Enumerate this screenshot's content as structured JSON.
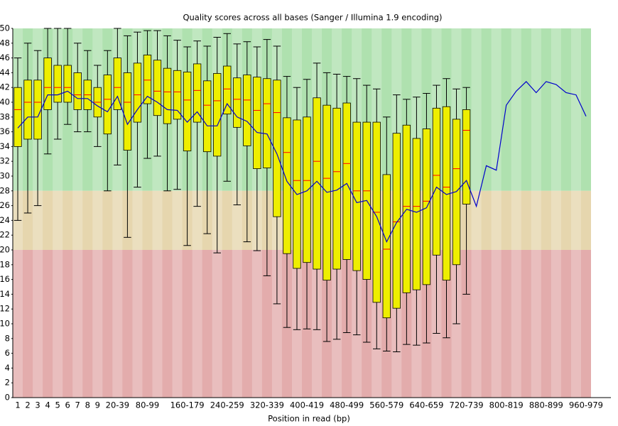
{
  "chart_data": {
    "type": "box",
    "title": "Quality scores across all bases (Sanger / Illumina 1.9 encoding)",
    "x_label": "Position in read (bp)",
    "categories": [
      "1",
      "2",
      "3",
      "4",
      "5",
      "6",
      "7",
      "8",
      "9",
      null,
      "20-39",
      null,
      null,
      "80-99",
      null,
      null,
      null,
      "160-179",
      null,
      null,
      null,
      "240-259",
      null,
      null,
      null,
      "320-339",
      null,
      null,
      null,
      "400-419",
      null,
      null,
      null,
      "480-499",
      null,
      null,
      null,
      "560-579",
      null,
      null,
      null,
      "640-659",
      null,
      null,
      null,
      "720-739",
      null,
      null,
      null,
      "800-819",
      null,
      null,
      null,
      "880-899",
      null,
      null,
      null,
      "960-979"
    ],
    "whisker_low": [
      24,
      25,
      26,
      33,
      35,
      37,
      36,
      36,
      34,
      28,
      31.5,
      21.7,
      28.5,
      32.4,
      32.7,
      28,
      28.2,
      20.6,
      25.9,
      22.2,
      19.6,
      29.3,
      26.1,
      21.1,
      19.9,
      16.5,
      12.7,
      9.5,
      9.2,
      9.3,
      9.2,
      7.6,
      7.9,
      8.8,
      8.5,
      7.5,
      6.6,
      6.3,
      6.2,
      7.2,
      7.1,
      7.4,
      8.7,
      8.1,
      10,
      14,
      null,
      null,
      null,
      null,
      null,
      null,
      null,
      null,
      null,
      null,
      null,
      null
    ],
    "q1": [
      34,
      35,
      35,
      39,
      40,
      40,
      39,
      39,
      38,
      35.7,
      39,
      33.5,
      37.3,
      39.8,
      38.2,
      37.1,
      37.7,
      33.4,
      37.3,
      33.3,
      32.7,
      38.4,
      36.6,
      34.1,
      31,
      31.1,
      24.5,
      19.5,
      17.5,
      18.3,
      17.4,
      15.9,
      17.4,
      18.7,
      17.2,
      16,
      12.9,
      10.8,
      12.1,
      14.2,
      14.6,
      15.3,
      19.3,
      15.9,
      18,
      26.2,
      null,
      null,
      null,
      null,
      null,
      null,
      null,
      null,
      null,
      null,
      null,
      null
    ],
    "median": [
      39,
      40,
      40,
      42,
      42,
      42,
      41,
      41,
      40,
      40.4,
      42,
      40,
      41,
      43,
      41.5,
      41.4,
      41.4,
      40.3,
      41.6,
      39.6,
      40.2,
      41.8,
      40.4,
      40.3,
      38.9,
      39.8,
      38.6,
      33.2,
      29.4,
      29.4,
      32,
      29.7,
      30.6,
      31.7,
      28,
      28,
      25.1,
      20.1,
      23.8,
      25.9,
      25.9,
      26.6,
      30.1,
      28.5,
      31,
      36.2,
      null,
      null,
      null,
      null,
      null,
      null,
      null,
      null,
      null,
      null,
      null,
      null
    ],
    "q3": [
      42,
      43,
      43,
      46,
      45,
      45,
      44,
      43,
      42,
      43.7,
      46,
      44,
      45.3,
      46.4,
      45.7,
      44.6,
      44.3,
      44.1,
      45.2,
      42.9,
      43.9,
      44.9,
      43.3,
      43.7,
      43.4,
      43.2,
      43,
      37.9,
      37.6,
      38,
      40.6,
      39.6,
      39.2,
      39.9,
      37.3,
      37.3,
      37.3,
      30.2,
      35.8,
      36.9,
      35.1,
      36.4,
      39.2,
      39.4,
      37.7,
      39,
      null,
      null,
      null,
      null,
      null,
      null,
      null,
      null,
      null,
      null,
      null,
      null
    ],
    "whisker_high": [
      46,
      48,
      47,
      50,
      50,
      50,
      48,
      47,
      45,
      47,
      50,
      49,
      49.5,
      49.7,
      49.7,
      49,
      48.4,
      47.5,
      48.3,
      47.6,
      48.8,
      49.3,
      47.9,
      48.2,
      47.5,
      48.5,
      47.6,
      43.5,
      42,
      43.1,
      45.3,
      44,
      43.8,
      43.5,
      43.2,
      42.3,
      41.8,
      38,
      41,
      40.4,
      40.7,
      41.2,
      42.3,
      43.2,
      41.8,
      42,
      null,
      null,
      null,
      null,
      null,
      null,
      null,
      null,
      null,
      null,
      null,
      null
    ],
    "mean": [
      36.5,
      38,
      38,
      41,
      41,
      41.5,
      40.5,
      40.5,
      39.5,
      38.7,
      40.8,
      37,
      39,
      40.8,
      40,
      39,
      38.9,
      37.3,
      38.7,
      36.8,
      36.8,
      39.8,
      38,
      37.4,
      35.9,
      35.7,
      33,
      29.3,
      27.5,
      28,
      29.3,
      27.8,
      28.1,
      29,
      26.4,
      26.7,
      24.5,
      21.1,
      23.7,
      25.5,
      25.1,
      25.7,
      28.5,
      27.5,
      27.9,
      29.4,
      25.9,
      31.4,
      30.8,
      39.6,
      41.5,
      42.8,
      41.3,
      42.8,
      42.4,
      41.3,
      41,
      38.1
    ],
    "box_color": "#eeee00",
    "median_color": "#ff0000",
    "mean_color": "#0000cc",
    "zones": [
      {
        "from": 28,
        "to": 50,
        "color": "#afe1af"
      },
      {
        "from": 20,
        "to": 28,
        "color": "#e6d6ae"
      },
      {
        "from": 0,
        "to": 20,
        "color": "#e3acac"
      }
    ],
    "ylim": [
      0,
      50
    ],
    "yticks": [
      0,
      2,
      4,
      6,
      8,
      10,
      12,
      14,
      16,
      18,
      20,
      22,
      24,
      26,
      28,
      30,
      32,
      34,
      36,
      38,
      40,
      42,
      44,
      46,
      48,
      50
    ]
  }
}
